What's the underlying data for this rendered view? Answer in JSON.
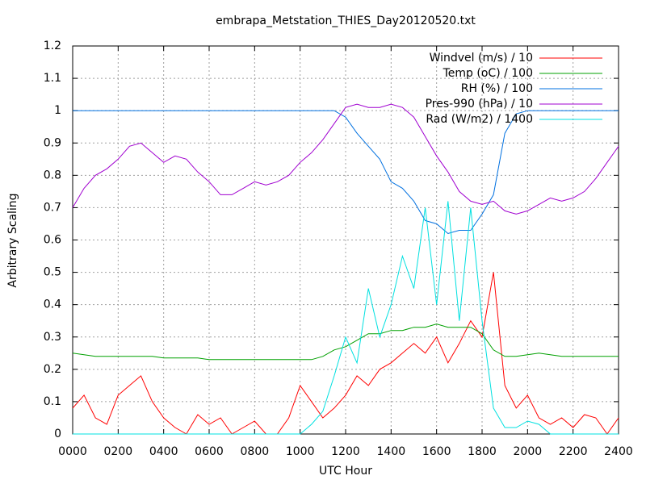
{
  "chart_data": {
    "type": "line",
    "title": "embrapa_Metstation_THIES_Day20120520.txt",
    "xlabel": "UTC Hour",
    "ylabel": "Arbitrary Scaling",
    "x": [
      0,
      50,
      100,
      150,
      200,
      250,
      300,
      350,
      400,
      450,
      500,
      550,
      600,
      650,
      700,
      750,
      800,
      850,
      900,
      950,
      1000,
      1050,
      1100,
      1150,
      1200,
      1250,
      1300,
      1350,
      1400,
      1450,
      1500,
      1550,
      1600,
      1650,
      1700,
      1750,
      1800,
      1850,
      1900,
      1950,
      2000,
      2050,
      2100,
      2150,
      2200,
      2250,
      2300,
      2350,
      2400
    ],
    "series": [
      {
        "name": "Windvel (m/s) / 10",
        "color": "#ff0000",
        "values": [
          0.08,
          0.12,
          0.05,
          0.03,
          0.12,
          0.15,
          0.18,
          0.1,
          0.05,
          0.02,
          0,
          0.06,
          0.03,
          0.05,
          0,
          0.02,
          0.04,
          0,
          0,
          0.05,
          0.15,
          0.1,
          0.05,
          0.08,
          0.12,
          0.18,
          0.15,
          0.2,
          0.22,
          0.25,
          0.28,
          0.25,
          0.3,
          0.22,
          0.28,
          0.35,
          0.3,
          0.5,
          0.15,
          0.08,
          0.12,
          0.05,
          0.03,
          0.05,
          0.02,
          0.06,
          0.05,
          0,
          0.05
        ]
      },
      {
        "name": "Temp (oC) / 100",
        "color": "#00a000",
        "values": [
          0.25,
          0.245,
          0.24,
          0.24,
          0.24,
          0.24,
          0.24,
          0.24,
          0.235,
          0.235,
          0.235,
          0.235,
          0.23,
          0.23,
          0.23,
          0.23,
          0.23,
          0.23,
          0.23,
          0.23,
          0.23,
          0.23,
          0.24,
          0.26,
          0.27,
          0.29,
          0.31,
          0.31,
          0.32,
          0.32,
          0.33,
          0.33,
          0.34,
          0.33,
          0.33,
          0.33,
          0.31,
          0.26,
          0.24,
          0.24,
          0.245,
          0.25,
          0.245,
          0.24,
          0.24,
          0.24,
          0.24,
          0.24,
          0.24
        ]
      },
      {
        "name": "RH (%) / 100",
        "color": "#0070e0",
        "values": [
          1,
          1,
          1,
          1,
          1,
          1,
          1,
          1,
          1,
          1,
          1,
          1,
          1,
          1,
          1,
          1,
          1,
          1,
          1,
          1,
          1,
          1,
          1,
          1,
          0.98,
          0.93,
          0.89,
          0.85,
          0.78,
          0.76,
          0.72,
          0.66,
          0.65,
          0.62,
          0.63,
          0.63,
          0.68,
          0.74,
          0.93,
          0.99,
          1,
          1,
          1,
          1,
          1,
          1,
          1,
          1,
          1
        ]
      },
      {
        "name": "Pres-990 (hPa) / 10",
        "color": "#a000d0",
        "values": [
          0.7,
          0.76,
          0.8,
          0.82,
          0.85,
          0.89,
          0.9,
          0.87,
          0.84,
          0.86,
          0.85,
          0.81,
          0.78,
          0.74,
          0.74,
          0.76,
          0.78,
          0.77,
          0.78,
          0.8,
          0.84,
          0.87,
          0.91,
          0.96,
          1.01,
          1.02,
          1.01,
          1.01,
          1.02,
          1.01,
          0.98,
          0.92,
          0.86,
          0.81,
          0.75,
          0.72,
          0.71,
          0.72,
          0.69,
          0.68,
          0.69,
          0.71,
          0.73,
          0.72,
          0.73,
          0.75,
          0.79,
          0.84,
          0.89
        ]
      },
      {
        "name": "Rad (W/m2) / 1400",
        "color": "#00e0e0",
        "values": [
          0,
          0,
          0,
          0,
          0,
          0,
          0,
          0,
          0,
          0,
          0,
          0,
          0,
          0,
          0,
          0,
          0,
          0,
          0,
          0,
          0,
          0.03,
          0.07,
          0.18,
          0.3,
          0.22,
          0.45,
          0.3,
          0.4,
          0.55,
          0.45,
          0.7,
          0.4,
          0.72,
          0.35,
          0.7,
          0.35,
          0.08,
          0.02,
          0.02,
          0.04,
          0.03,
          0,
          0,
          0,
          0,
          0,
          0,
          0
        ]
      }
    ],
    "xlim": [
      0,
      2400
    ],
    "xticks": [
      {
        "value": 0,
        "label": "0000"
      },
      {
        "value": 200,
        "label": "0200"
      },
      {
        "value": 400,
        "label": "0400"
      },
      {
        "value": 600,
        "label": "0600"
      },
      {
        "value": 800,
        "label": "0800"
      },
      {
        "value": 1000,
        "label": "1000"
      },
      {
        "value": 1200,
        "label": "1200"
      },
      {
        "value": 1400,
        "label": "1400"
      },
      {
        "value": 1600,
        "label": "1600"
      },
      {
        "value": 1800,
        "label": "1800"
      },
      {
        "value": 2000,
        "label": "2000"
      },
      {
        "value": 2200,
        "label": "2200"
      },
      {
        "value": 2400,
        "label": "2400"
      }
    ],
    "ylim": [
      0,
      1.2
    ],
    "yticks": [
      0,
      0.1,
      0.2,
      0.3,
      0.4,
      0.5,
      0.6,
      0.7,
      0.8,
      0.9,
      1,
      1.1,
      1.2
    ],
    "grid": true,
    "legend": "top-right"
  }
}
